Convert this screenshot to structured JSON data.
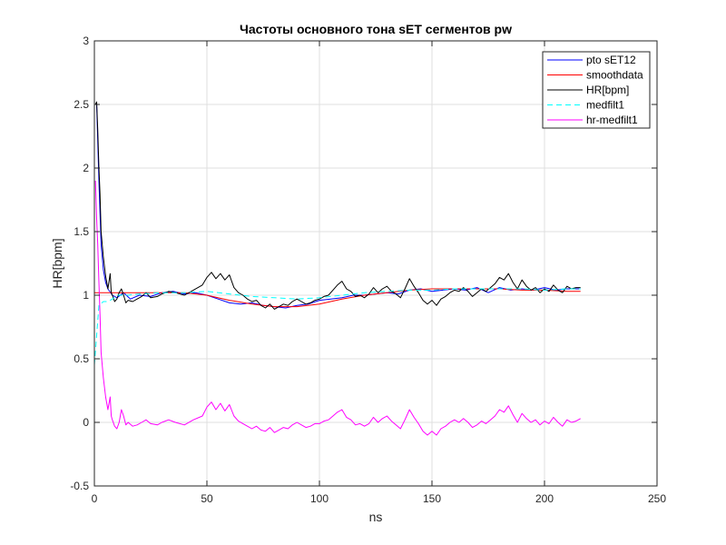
{
  "chart_data": {
    "type": "line",
    "title": "Частоты основного тона sET сегментов pw",
    "xlabel": "ns",
    "ylabel": "HR[bpm]",
    "xlim": [
      0,
      250
    ],
    "ylim": [
      -0.5,
      3
    ],
    "xticks": [
      0,
      50,
      100,
      150,
      200,
      250
    ],
    "yticks": [
      -0.5,
      0,
      0.5,
      1,
      1.5,
      2,
      2.5,
      3
    ],
    "xtick_labels": [
      "0",
      "50",
      "100",
      "150",
      "200",
      "250"
    ],
    "ytick_labels": [
      "-0.5",
      "0",
      "0.5",
      "1",
      "1.5",
      "2",
      "2.5",
      "3"
    ],
    "grid": true,
    "legend_position": "top-right",
    "series": [
      {
        "name": "pto sET12",
        "color": "#0000ff",
        "dash": "solid",
        "x": [
          1,
          2,
          3,
          4,
          5,
          6,
          8,
          10,
          13,
          16,
          20,
          25,
          30,
          35,
          40,
          45,
          50,
          55,
          60,
          65,
          70,
          75,
          80,
          85,
          90,
          95,
          100,
          105,
          110,
          115,
          120,
          125,
          130,
          135,
          140,
          145,
          150,
          155,
          160,
          165,
          170,
          175,
          180,
          185,
          190,
          195,
          200,
          205,
          210,
          216
        ],
        "y": [
          2.5,
          1.9,
          1.4,
          1.2,
          1.1,
          1.05,
          1.0,
          0.98,
          1.02,
          0.97,
          1.0,
          0.99,
          1.02,
          1.03,
          1.01,
          1.02,
          1.0,
          0.97,
          0.94,
          0.93,
          0.94,
          0.92,
          0.91,
          0.9,
          0.92,
          0.93,
          0.96,
          0.97,
          0.98,
          1.0,
          1.0,
          1.01,
          1.02,
          1.01,
          1.04,
          1.05,
          1.03,
          1.04,
          1.05,
          1.04,
          1.06,
          1.02,
          1.06,
          1.04,
          1.05,
          1.04,
          1.06,
          1.04,
          1.05,
          1.05
        ]
      },
      {
        "name": "smoothdata",
        "color": "#ff0000",
        "dash": "solid",
        "x": [
          0,
          10,
          20,
          30,
          40,
          50,
          60,
          70,
          80,
          90,
          100,
          110,
          120,
          130,
          140,
          150,
          160,
          170,
          180,
          190,
          200,
          210,
          216
        ],
        "y": [
          1.02,
          1.02,
          1.02,
          1.02,
          1.02,
          1.0,
          0.96,
          0.93,
          0.91,
          0.91,
          0.93,
          0.97,
          1.0,
          1.02,
          1.04,
          1.05,
          1.05,
          1.05,
          1.05,
          1.04,
          1.04,
          1.03,
          1.03
        ]
      },
      {
        "name": "HR[bpm]",
        "color": "#000000",
        "dash": "solid",
        "x": [
          0.5,
          1,
          1.5,
          2,
          2.5,
          3,
          4,
          5,
          6,
          7,
          7.5,
          8,
          9,
          10,
          11,
          12,
          13,
          14,
          15,
          17,
          19,
          21,
          23,
          25,
          28,
          30,
          33,
          36,
          40,
          44,
          48,
          50,
          52,
          54,
          56,
          58,
          60,
          62,
          64,
          66,
          68,
          70,
          72,
          74,
          76,
          78,
          80,
          82,
          84,
          86,
          88,
          90,
          92,
          94,
          96,
          98,
          100,
          102,
          104,
          106,
          108,
          110,
          112,
          114,
          116,
          118,
          120,
          122,
          124,
          126,
          128,
          130,
          132,
          134,
          136,
          138,
          140,
          142,
          144,
          146,
          148,
          150,
          152,
          154,
          156,
          158,
          160,
          162,
          164,
          166,
          168,
          170,
          172,
          174,
          176,
          178,
          180,
          182,
          184,
          186,
          188,
          190,
          192,
          194,
          196,
          198,
          200,
          202,
          204,
          206,
          208,
          210,
          212,
          214,
          216
        ],
        "y": [
          2.5,
          2.52,
          2.3,
          2.0,
          1.8,
          1.5,
          1.3,
          1.15,
          1.05,
          1.17,
          1.02,
          1.0,
          0.95,
          0.97,
          1.02,
          1.05,
          1.0,
          0.94,
          0.96,
          0.95,
          0.97,
          0.99,
          1.02,
          0.98,
          0.99,
          1.01,
          1.03,
          1.02,
          1.0,
          1.04,
          1.08,
          1.14,
          1.18,
          1.13,
          1.17,
          1.12,
          1.16,
          1.06,
          1.02,
          1.0,
          0.97,
          0.95,
          0.96,
          0.92,
          0.9,
          0.93,
          0.89,
          0.91,
          0.93,
          0.92,
          0.95,
          0.97,
          0.95,
          0.93,
          0.94,
          0.96,
          0.97,
          0.99,
          1.0,
          1.04,
          1.08,
          1.11,
          1.05,
          1.03,
          0.99,
          1.0,
          0.98,
          1.01,
          1.06,
          1.02,
          1.05,
          1.07,
          1.03,
          1.01,
          0.98,
          1.05,
          1.13,
          1.07,
          1.02,
          0.96,
          0.93,
          0.96,
          0.92,
          0.97,
          0.99,
          1.02,
          1.04,
          1.03,
          1.06,
          1.03,
          0.99,
          1.02,
          1.05,
          1.03,
          1.06,
          1.09,
          1.14,
          1.12,
          1.17,
          1.1,
          1.05,
          1.12,
          1.07,
          1.04,
          1.06,
          1.02,
          1.05,
          1.03,
          1.08,
          1.04,
          1.02,
          1.07,
          1.05,
          1.06,
          1.06
        ]
      },
      {
        "name": "medfilt1",
        "color": "#00ffff",
        "dash": "dashed",
        "x": [
          0,
          2,
          4,
          5,
          6,
          8,
          10,
          15,
          20,
          30,
          40,
          50,
          60,
          70,
          80,
          90,
          100,
          110,
          120,
          130,
          140,
          150,
          160,
          170,
          180,
          190,
          200,
          210,
          216
        ],
        "y": [
          0.45,
          0.92,
          0.95,
          0.95,
          0.95,
          0.97,
          1.0,
          1.0,
          1.01,
          1.02,
          1.02,
          1.03,
          1.01,
          0.99,
          0.98,
          0.97,
          0.98,
          1.0,
          1.02,
          1.03,
          1.04,
          1.04,
          1.05,
          1.05,
          1.05,
          1.05,
          1.04,
          1.05,
          1.05
        ]
      },
      {
        "name": "hr-medfilt1",
        "color": "#ff00ff",
        "dash": "solid",
        "x": [
          0.5,
          1,
          1.5,
          2,
          2.5,
          3,
          4,
          5,
          6,
          7,
          7.5,
          8,
          9,
          10,
          11,
          12,
          13,
          14,
          15,
          17,
          19,
          21,
          23,
          25,
          28,
          30,
          33,
          36,
          40,
          44,
          48,
          50,
          52,
          54,
          56,
          58,
          60,
          62,
          64,
          66,
          68,
          70,
          72,
          74,
          76,
          78,
          80,
          82,
          84,
          86,
          88,
          90,
          92,
          94,
          96,
          98,
          100,
          102,
          104,
          106,
          108,
          110,
          112,
          114,
          116,
          118,
          120,
          122,
          124,
          126,
          128,
          130,
          132,
          134,
          136,
          138,
          140,
          142,
          144,
          146,
          148,
          150,
          152,
          154,
          156,
          158,
          160,
          162,
          164,
          166,
          168,
          170,
          172,
          174,
          176,
          178,
          180,
          182,
          184,
          186,
          188,
          190,
          192,
          194,
          196,
          198,
          200,
          202,
          204,
          206,
          208,
          210,
          212,
          214,
          216
        ],
        "y": [
          1.9,
          1.6,
          1.4,
          1.1,
          0.85,
          0.55,
          0.35,
          0.2,
          0.1,
          0.2,
          0.05,
          0.02,
          -0.03,
          -0.05,
          0.0,
          0.1,
          0.05,
          -0.02,
          0.0,
          -0.03,
          -0.02,
          0.0,
          0.02,
          -0.01,
          -0.02,
          0.0,
          0.02,
          0.0,
          -0.02,
          0.02,
          0.05,
          0.12,
          0.16,
          0.1,
          0.15,
          0.09,
          0.14,
          0.05,
          0.01,
          -0.01,
          -0.03,
          -0.05,
          -0.03,
          -0.06,
          -0.07,
          -0.04,
          -0.08,
          -0.06,
          -0.04,
          -0.05,
          -0.02,
          0.0,
          -0.02,
          -0.04,
          -0.03,
          -0.01,
          -0.01,
          0.01,
          0.02,
          0.05,
          0.08,
          0.1,
          0.04,
          0.02,
          -0.02,
          -0.01,
          -0.03,
          -0.01,
          0.04,
          0.0,
          0.03,
          0.05,
          0.01,
          -0.02,
          -0.05,
          0.02,
          0.1,
          0.04,
          -0.01,
          -0.07,
          -0.1,
          -0.07,
          -0.1,
          -0.05,
          -0.03,
          0.0,
          0.02,
          0.0,
          0.03,
          0.0,
          -0.04,
          -0.02,
          0.01,
          -0.01,
          0.02,
          0.05,
          0.1,
          0.08,
          0.13,
          0.06,
          0.0,
          0.07,
          0.03,
          0.0,
          0.02,
          -0.02,
          0.01,
          -0.01,
          0.04,
          0.0,
          -0.03,
          0.02,
          0.0,
          0.01,
          0.03
        ]
      }
    ]
  }
}
